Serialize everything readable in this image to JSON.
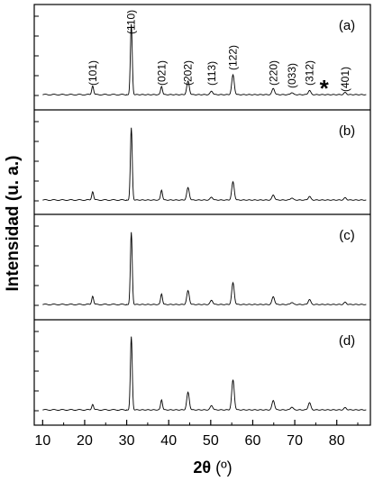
{
  "chart_data": {
    "type": "line",
    "ylabel": "Intensidad (u. a.)",
    "xlabel_symbol": "2θ",
    "xlabel_unit": " (º)",
    "xlim": [
      8,
      88
    ],
    "xticks": [
      10,
      20,
      30,
      40,
      50,
      60,
      70,
      80
    ],
    "star_label": "*",
    "star_x": 77,
    "peak_labels": [
      {
        "label": "(101)",
        "x": 21.9
      },
      {
        "label": "(110)",
        "x": 31.1
      },
      {
        "label": "(021)",
        "x": 38.3
      },
      {
        "label": "(202)",
        "x": 44.6
      },
      {
        "label": "(113)",
        "x": 50.2
      },
      {
        "label": "(122)",
        "x": 55.3
      },
      {
        "label": "(220)",
        "x": 64.9
      },
      {
        "label": "(033)",
        "x": 69.3
      },
      {
        "label": "(312)",
        "x": 73.5
      },
      {
        "label": "(401)",
        "x": 82.0
      }
    ],
    "panels": [
      {
        "label": "(a)",
        "peaks": [
          [
            21.9,
            0.13
          ],
          [
            31.1,
            1.0
          ],
          [
            38.3,
            0.12
          ],
          [
            44.6,
            0.19
          ],
          [
            50.2,
            0.05
          ],
          [
            55.3,
            0.28
          ],
          [
            64.9,
            0.09
          ],
          [
            69.3,
            0.03
          ],
          [
            73.5,
            0.06
          ],
          [
            82.0,
            0.03
          ]
        ]
      },
      {
        "label": "(b)",
        "peaks": [
          [
            21.9,
            0.12
          ],
          [
            31.1,
            1.0
          ],
          [
            38.3,
            0.14
          ],
          [
            44.6,
            0.17
          ],
          [
            50.2,
            0.04
          ],
          [
            55.3,
            0.25
          ],
          [
            64.9,
            0.07
          ],
          [
            69.3,
            0.03
          ],
          [
            73.5,
            0.05
          ],
          [
            82.0,
            0.03
          ]
        ]
      },
      {
        "label": "(c)",
        "peaks": [
          [
            21.9,
            0.12
          ],
          [
            31.1,
            1.0
          ],
          [
            38.3,
            0.15
          ],
          [
            44.6,
            0.19
          ],
          [
            50.2,
            0.06
          ],
          [
            55.3,
            0.3
          ],
          [
            64.9,
            0.11
          ],
          [
            69.3,
            0.03
          ],
          [
            73.5,
            0.07
          ],
          [
            82.0,
            0.03
          ]
        ]
      },
      {
        "label": "(d)",
        "peaks": [
          [
            21.9,
            0.08
          ],
          [
            31.1,
            1.0
          ],
          [
            38.3,
            0.14
          ],
          [
            44.6,
            0.24
          ],
          [
            50.2,
            0.06
          ],
          [
            55.3,
            0.41
          ],
          [
            64.9,
            0.13
          ],
          [
            69.3,
            0.04
          ],
          [
            73.5,
            0.1
          ],
          [
            82.0,
            0.03
          ]
        ]
      }
    ]
  }
}
